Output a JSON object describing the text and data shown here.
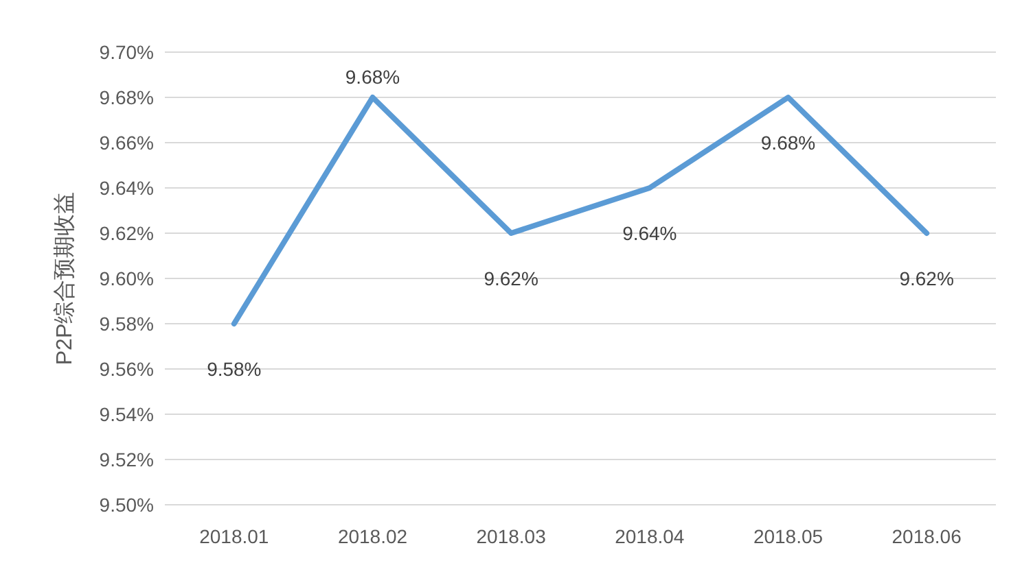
{
  "chart_data": {
    "type": "line",
    "categories": [
      "2018.01",
      "2018.02",
      "2018.03",
      "2018.04",
      "2018.05",
      "2018.06"
    ],
    "series": [
      {
        "color": "#5b9bd5",
        "values": [
          9.58,
          9.68,
          9.62,
          9.64,
          9.68,
          9.62
        ],
        "value_labels": [
          "9.58%",
          "9.68%",
          "9.62%",
          "9.64%",
          "9.68%",
          "9.62%"
        ]
      }
    ],
    "ylabel": "P2P综合预期收益",
    "ylim": [
      9.5,
      9.7
    ],
    "yticks": [
      {
        "value": 9.5,
        "label": "9.50%"
      },
      {
        "value": 9.52,
        "label": "9.52%"
      },
      {
        "value": 9.54,
        "label": "9.54%"
      },
      {
        "value": 9.56,
        "label": "9.56%"
      },
      {
        "value": 9.58,
        "label": "9.58%"
      },
      {
        "value": 9.6,
        "label": "9.60%"
      },
      {
        "value": 9.62,
        "label": "9.62%"
      },
      {
        "value": 9.64,
        "label": "9.64%"
      },
      {
        "value": 9.66,
        "label": "9.66%"
      },
      {
        "value": 9.68,
        "label": "9.68%"
      },
      {
        "value": 9.7,
        "label": "9.70%"
      }
    ],
    "grid": "y",
    "marker": "none",
    "line_style": "solid"
  }
}
